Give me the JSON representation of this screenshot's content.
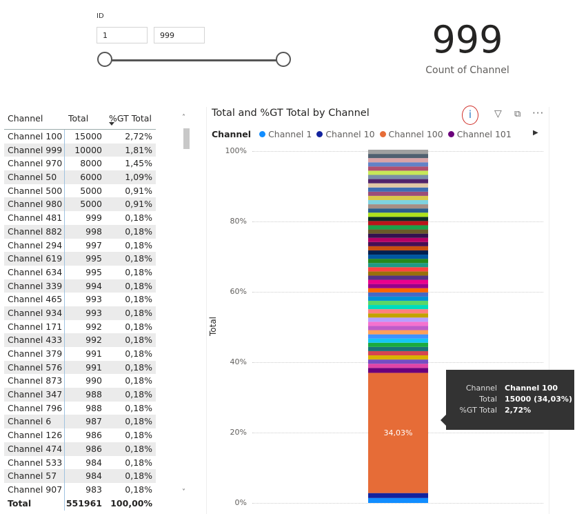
{
  "slicer": {
    "title": "ID",
    "min_value": "1",
    "max_value": "999"
  },
  "card": {
    "value": "999",
    "label": "Count of Channel"
  },
  "table": {
    "headers": [
      "Channel",
      "Total",
      "%GT Total"
    ],
    "rows": [
      [
        "Channel 100",
        "15000",
        "2,72%"
      ],
      [
        "Channel 999",
        "10000",
        "1,81%"
      ],
      [
        "Channel 970",
        "8000",
        "1,45%"
      ],
      [
        "Channel 50",
        "6000",
        "1,09%"
      ],
      [
        "Channel 500",
        "5000",
        "0,91%"
      ],
      [
        "Channel 980",
        "5000",
        "0,91%"
      ],
      [
        "Channel 481",
        "999",
        "0,18%"
      ],
      [
        "Channel 882",
        "998",
        "0,18%"
      ],
      [
        "Channel 294",
        "997",
        "0,18%"
      ],
      [
        "Channel 619",
        "995",
        "0,18%"
      ],
      [
        "Channel 634",
        "995",
        "0,18%"
      ],
      [
        "Channel 339",
        "994",
        "0,18%"
      ],
      [
        "Channel 465",
        "993",
        "0,18%"
      ],
      [
        "Channel 934",
        "993",
        "0,18%"
      ],
      [
        "Channel 171",
        "992",
        "0,18%"
      ],
      [
        "Channel 433",
        "992",
        "0,18%"
      ],
      [
        "Channel 379",
        "991",
        "0,18%"
      ],
      [
        "Channel 576",
        "991",
        "0,18%"
      ],
      [
        "Channel 873",
        "990",
        "0,18%"
      ],
      [
        "Channel 347",
        "988",
        "0,18%"
      ],
      [
        "Channel 796",
        "988",
        "0,18%"
      ],
      [
        "Channel 6",
        "987",
        "0,18%"
      ],
      [
        "Channel 126",
        "986",
        "0,18%"
      ],
      [
        "Channel 474",
        "986",
        "0,18%"
      ],
      [
        "Channel 533",
        "984",
        "0,18%"
      ],
      [
        "Channel 57",
        "984",
        "0,18%"
      ],
      [
        "Channel 907",
        "983",
        "0,18%"
      ]
    ],
    "footer": [
      "Total",
      "551961",
      "100,00%"
    ]
  },
  "chart_data": {
    "type": "bar",
    "title": "Total and %GT Total by Channel",
    "ylabel": "Total",
    "xlabel": "",
    "ylim": [
      0,
      100
    ],
    "yticks": [
      "0%",
      "20%",
      "40%",
      "60%",
      "80%",
      "100%"
    ],
    "legend": {
      "title": "Channel",
      "placement": "top",
      "items": [
        {
          "name": "Channel 1",
          "color": "#118DFF"
        },
        {
          "name": "Channel 10",
          "color": "#12239E"
        },
        {
          "name": "Channel 100",
          "color": "#E66C37"
        },
        {
          "name": "Channel 101",
          "color": "#6B007B"
        }
      ]
    },
    "highlighted_segment": {
      "name": "Channel 100",
      "value": 34.03,
      "color": "#E66C37",
      "data_label": "34,03%"
    },
    "segments_percent": [
      {
        "name": "Channel 1",
        "value": 1.4,
        "color": "#118DFF"
      },
      {
        "name": "Channel 10",
        "value": 1.4,
        "color": "#12239E"
      },
      {
        "name": "Channel 100",
        "value": 34.03,
        "color": "#E66C37"
      },
      {
        "name": "Channel 101",
        "value": 1.4,
        "color": "#6B007B"
      }
    ],
    "other_segment_colors": [
      "#E044A7",
      "#744EC2",
      "#D9B300",
      "#D64550",
      "#197278",
      "#1AAB40",
      "#15C6F4",
      "#4092FF",
      "#FFA058",
      "#BE5DC9",
      "#F472D0",
      "#B5A1FF",
      "#C4A200",
      "#FF8080",
      "#00DBBC",
      "#5BD667",
      "#0091D5",
      "#4668C5",
      "#FF6300",
      "#99008A",
      "#EC008C",
      "#533285",
      "#99700A",
      "#FF4141",
      "#1F9A85",
      "#25891C",
      "#0057A2",
      "#002050",
      "#C94F0F",
      "#450F54",
      "#B60064",
      "#34124F",
      "#6A5A29",
      "#1BA049",
      "#BA141A",
      "#0C2E25",
      "#ADE21B",
      "#2A5E8C",
      "#A68F85",
      "#7ED3E0",
      "#D8C94A",
      "#9B4E78",
      "#3D6DB3",
      "#E1C7A5",
      "#51236A",
      "#7A8FA8",
      "#C7E858",
      "#B14F6E",
      "#6382C7",
      "#D9A3A8",
      "#506070",
      "#A0A0A0"
    ],
    "tooltip": {
      "rows": [
        {
          "key": "Channel",
          "value": "Channel 100"
        },
        {
          "key": "Total",
          "value": "15000 (34,03%)"
        },
        {
          "key": "%GT Total",
          "value": "2,72%"
        }
      ]
    }
  },
  "colors": {
    "track": "#555555",
    "grid": "#cccccc",
    "divider": "#9fc2e0",
    "tooltip_bg": "#333333"
  },
  "icons": {
    "info": "info-icon",
    "filter": "filter-icon",
    "focus": "focus-mode-icon",
    "more": "more-options-icon"
  },
  "glyphs": {
    "info": "i",
    "filter": "▽",
    "focus": "⧉",
    "more": "···",
    "legend_next": "▶",
    "scroll_up": "˄",
    "scroll_down": "˅"
  }
}
